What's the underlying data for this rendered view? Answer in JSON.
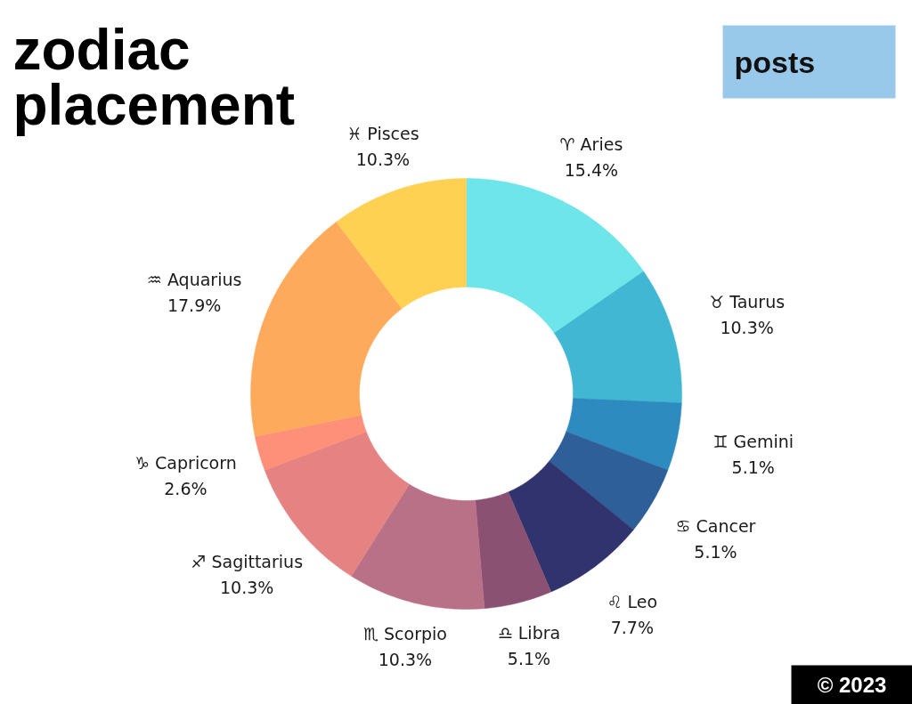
{
  "chart_data": {
    "type": "donut",
    "title": "zodiac placement",
    "subtitle": "posts",
    "categories": [
      "♈ Aries",
      "♉ Taurus",
      "♊ Gemini",
      "♋ Cancer",
      "♌ Leo",
      "♎ Libra",
      "♏ Scorpio",
      "♐ Sagittarius",
      "♑ Capricorn",
      "♒ Aquarius",
      "♓ Pisces"
    ],
    "values": [
      15.4,
      10.3,
      5.1,
      5.1,
      7.7,
      5.1,
      10.3,
      10.3,
      2.6,
      17.9,
      10.3
    ],
    "value_labels": [
      "15.4%",
      "10.3%",
      "5.1%",
      "5.1%",
      "7.7%",
      "5.1%",
      "10.3%",
      "10.3%",
      "2.6%",
      "17.9%",
      "10.3%"
    ],
    "colors": [
      "#6ee5e9",
      "#42b7d4",
      "#2d8bbf",
      "#2e5f98",
      "#30336d",
      "#8a5173",
      "#b87186",
      "#e58383",
      "#fe9079",
      "#feaa5c",
      "#ffd152"
    ],
    "annotations": [
      "© 2023"
    ]
  }
}
